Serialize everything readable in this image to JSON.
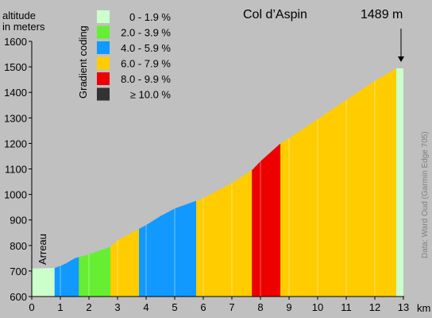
{
  "chart_data": {
    "type": "area",
    "title": "Col d’Aspin",
    "summit_label": "1489 m",
    "ylabel_line1": "altitude",
    "ylabel_line2": "in meters",
    "xlabel": "km",
    "start_label": "Arreau",
    "credit": "Data: Ward Oud (Garmin Edge 705)",
    "legend_title": "Gradient coding",
    "legend": [
      {
        "label": "0 - 1.9 %",
        "color": "#ccffcc"
      },
      {
        "label": "2.0 - 3.9 %",
        "color": "#66ee33"
      },
      {
        "label": "4.0 - 5.9 %",
        "color": "#1199ff"
      },
      {
        "label": "6.0 - 7.9 %",
        "color": "#ffcc00"
      },
      {
        "label": "8.0 - 9.9 %",
        "color": "#ee0000"
      },
      {
        "label": "≥ 10.0 %",
        "color": "#333333"
      }
    ],
    "xlim": [
      0,
      13
    ],
    "ylim": [
      600,
      1600
    ],
    "xticks": [
      0,
      1,
      2,
      3,
      4,
      5,
      6,
      7,
      8,
      9,
      10,
      11,
      12,
      13
    ],
    "yticks": [
      600,
      700,
      800,
      900,
      1000,
      1100,
      1200,
      1300,
      1400,
      1500,
      1600
    ],
    "profile": [
      {
        "km": 0.0,
        "alt": 710
      },
      {
        "km": 0.8,
        "alt": 712
      },
      {
        "km": 1.0,
        "alt": 720
      },
      {
        "km": 1.2,
        "alt": 730
      },
      {
        "km": 1.5,
        "alt": 750
      },
      {
        "km": 1.65,
        "alt": 755
      },
      {
        "km": 2.0,
        "alt": 765
      },
      {
        "km": 2.5,
        "alt": 785
      },
      {
        "km": 2.75,
        "alt": 795
      },
      {
        "km": 3.0,
        "alt": 820
      },
      {
        "km": 3.5,
        "alt": 850
      },
      {
        "km": 3.75,
        "alt": 865
      },
      {
        "km": 4.0,
        "alt": 880
      },
      {
        "km": 4.5,
        "alt": 915
      },
      {
        "km": 5.0,
        "alt": 945
      },
      {
        "km": 5.75,
        "alt": 975
      },
      {
        "km": 6.0,
        "alt": 985
      },
      {
        "km": 7.0,
        "alt": 1045
      },
      {
        "km": 7.7,
        "alt": 1095
      },
      {
        "km": 8.0,
        "alt": 1130
      },
      {
        "km": 8.7,
        "alt": 1200
      },
      {
        "km": 9.0,
        "alt": 1220
      },
      {
        "km": 10.0,
        "alt": 1295
      },
      {
        "km": 11.0,
        "alt": 1370
      },
      {
        "km": 12.0,
        "alt": 1445
      },
      {
        "km": 12.75,
        "alt": 1494
      },
      {
        "km": 13.0,
        "alt": 1494
      }
    ],
    "segments": [
      {
        "from": 0.0,
        "to": 0.8,
        "grade": 0
      },
      {
        "from": 0.8,
        "to": 1.65,
        "grade": 2
      },
      {
        "from": 1.65,
        "to": 2.75,
        "grade": 1
      },
      {
        "from": 2.75,
        "to": 3.75,
        "grade": 3
      },
      {
        "from": 3.75,
        "to": 5.75,
        "grade": 2
      },
      {
        "from": 5.75,
        "to": 7.7,
        "grade": 3
      },
      {
        "from": 7.7,
        "to": 8.7,
        "grade": 4
      },
      {
        "from": 8.7,
        "to": 12.75,
        "grade": 3
      },
      {
        "from": 12.75,
        "to": 13.0,
        "grade": 0
      }
    ],
    "summit_km": 12.9
  }
}
